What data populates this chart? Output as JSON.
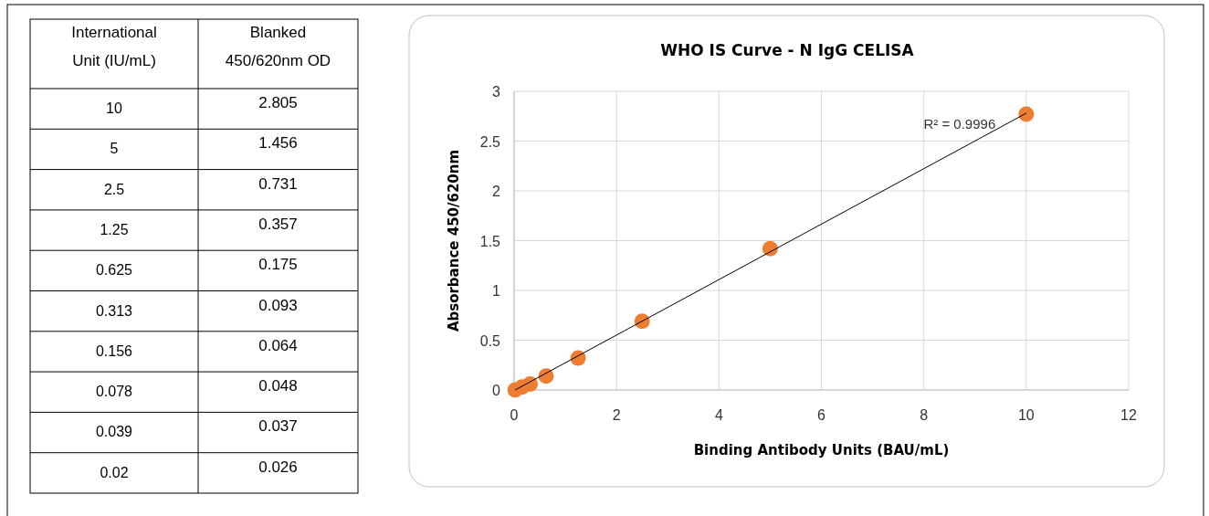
{
  "chart_data": [
    {
      "type": "other",
      "annotations": [
        "International Unit (IU/mL)",
        "Blanked 450/620nm OD"
      ],
      "categories": [
        "10",
        "5",
        "2.5",
        "1.25",
        "0.625",
        "0.313",
        "0.156",
        "0.078",
        "0.039",
        "0.02"
      ],
      "values": [
        2.805,
        1.456,
        0.731,
        0.357,
        0.175,
        0.093,
        0.064,
        0.048,
        0.037,
        0.026
      ],
      "data_labels": true
    },
    {
      "type": "scatter",
      "title": "WHO IS Curve - N IgG CELISA",
      "xlabel": "Binding Antibody Units (BAU/mL)",
      "ylabel": "Absorbance 450/620nm",
      "xlim": [
        0,
        12
      ],
      "xticks": [
        0,
        2,
        4,
        6,
        8,
        10,
        12
      ],
      "ylim": [
        0,
        3
      ],
      "yticks": [
        0,
        0.5,
        1,
        1.5,
        2,
        2.5,
        3
      ],
      "grid": true,
      "annotations": [
        "R² = 0.9996"
      ],
      "series": [
        {
          "type": "scatter",
          "color": "#ed7d31",
          "marker": "circle",
          "x": [
            10,
            5,
            2.5,
            1.25,
            0.625,
            0.313,
            0.156,
            0.02
          ],
          "values": [
            2.77,
            1.42,
            0.69,
            0.32,
            0.14,
            0.06,
            0.03,
            0.0
          ]
        },
        {
          "type": "line",
          "color": "#000000",
          "marker": "none",
          "line_style": "solid",
          "x": [
            0.02,
            10
          ],
          "values": [
            0.0,
            2.78
          ]
        }
      ]
    }
  ]
}
